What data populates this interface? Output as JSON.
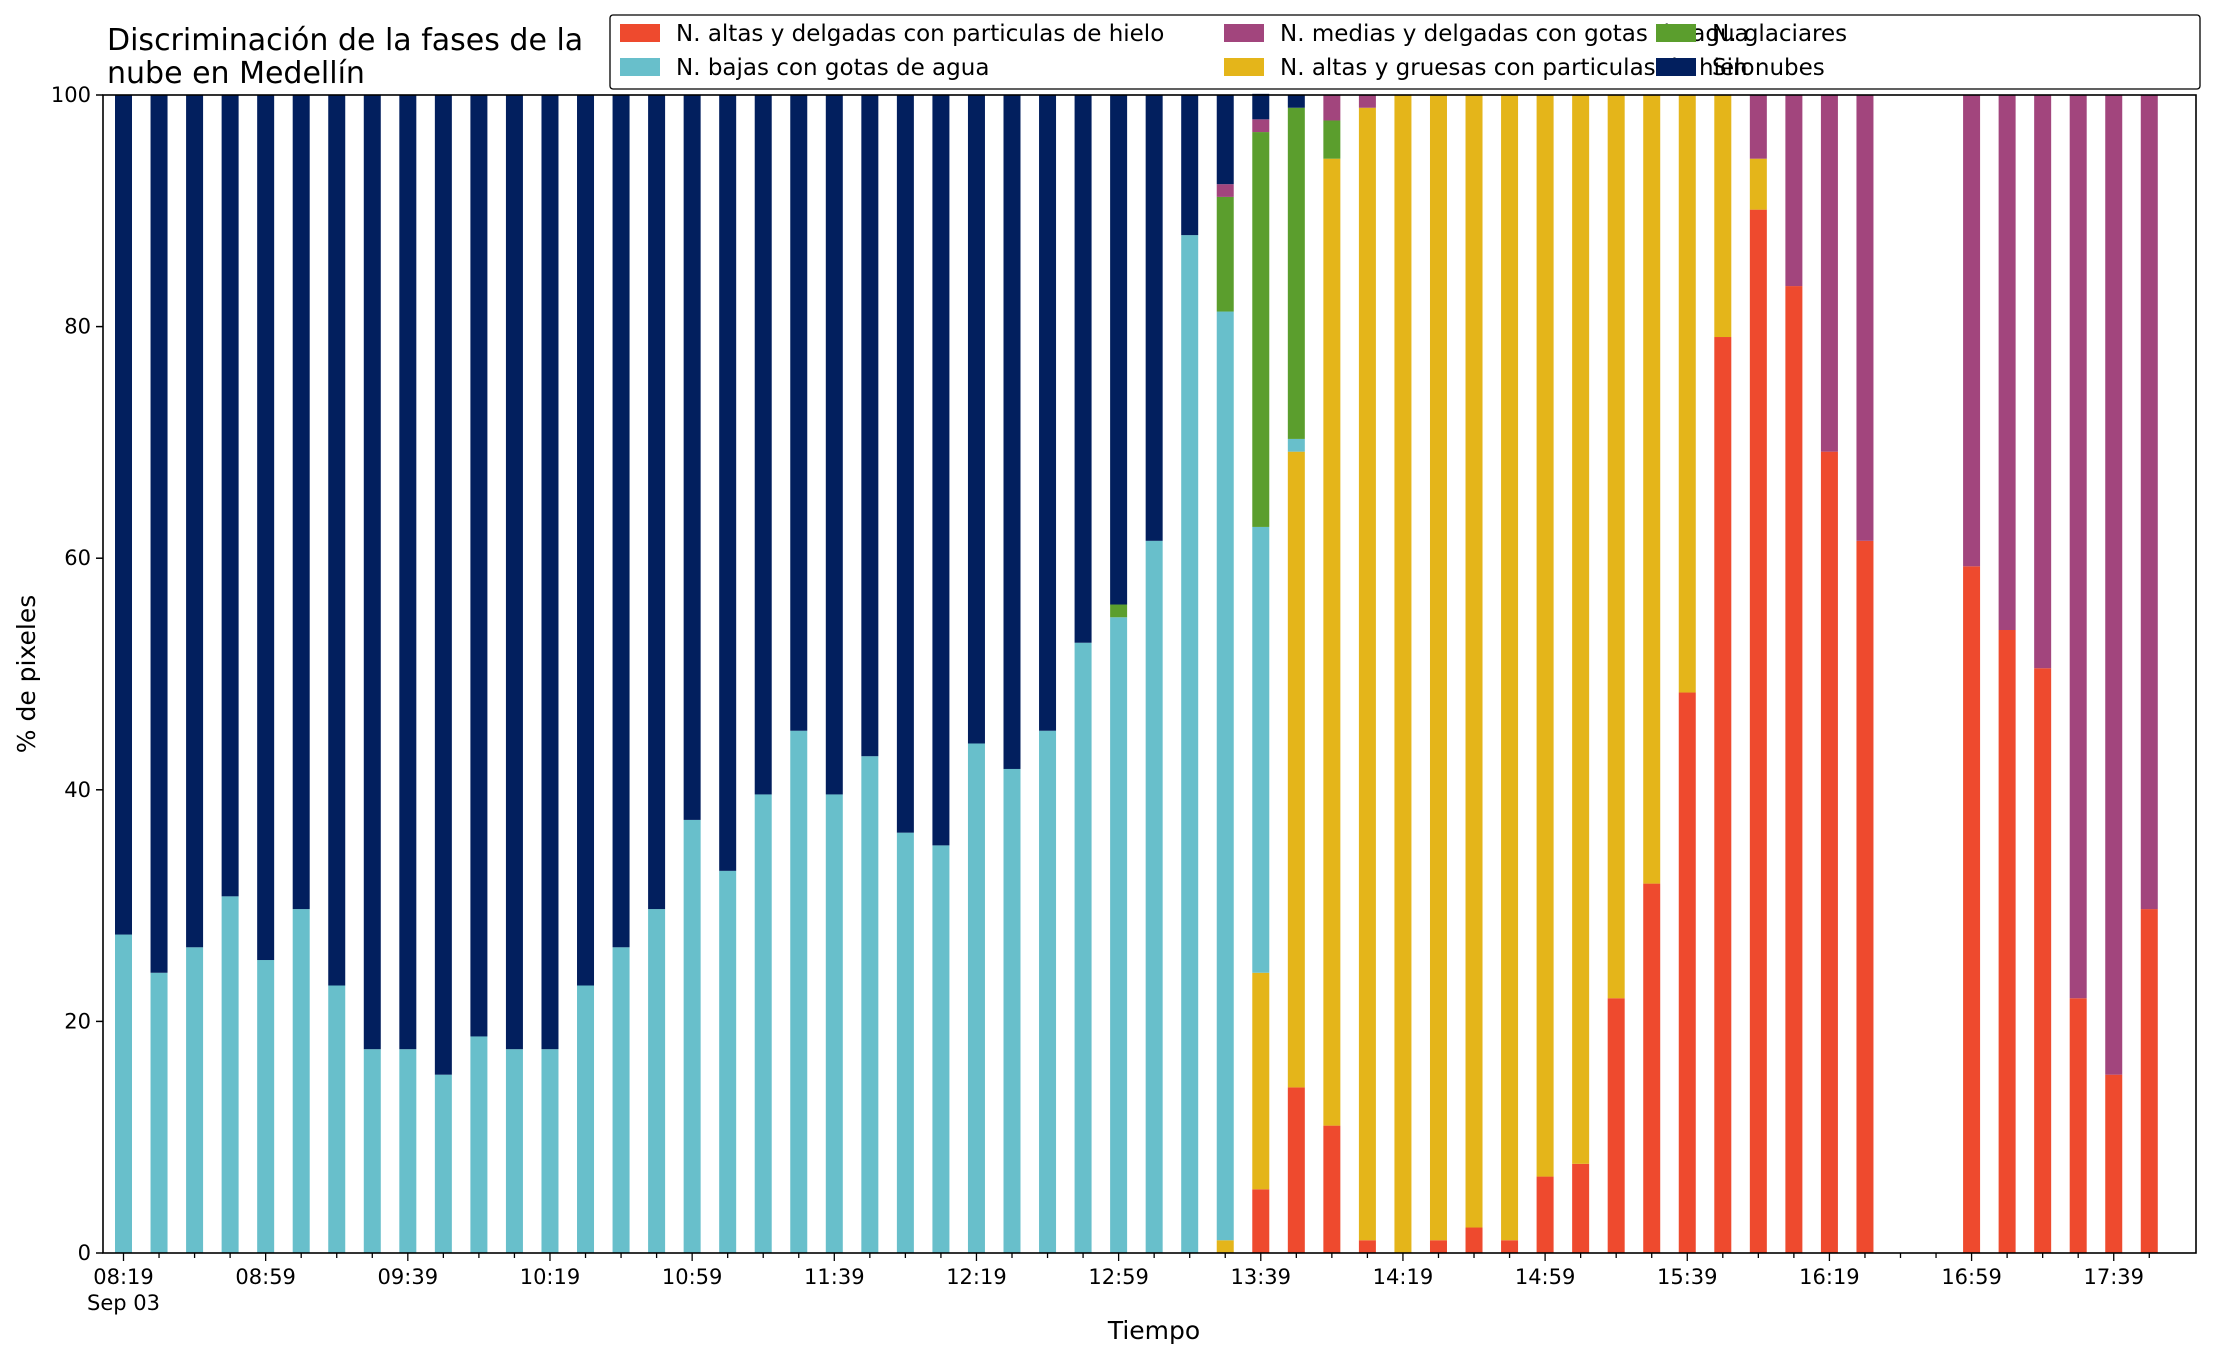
{
  "chart_data": {
    "type": "bar",
    "stacked": true,
    "title_lines": [
      "Discriminación de la fases de la",
      "nube en Medellín"
    ],
    "xlabel": "Tiempo",
    "ylabel": "% de pixeles",
    "ylim": [
      0,
      100
    ],
    "yticks": [
      "0",
      "20",
      "40",
      "60",
      "80",
      "100"
    ],
    "x_start_label": "08:19",
    "x_date_label": "Sep 03",
    "x_tick_labels": [
      "08:59",
      "09:39",
      "10:19",
      "10:59",
      "11:39",
      "12:19",
      "12:59",
      "13:39",
      "14:19",
      "14:59",
      "15:39",
      "16:19",
      "16:59",
      "17:39"
    ],
    "x_interval_minutes": 10,
    "legend_placement": "top-right",
    "grid": false,
    "categories": [
      "08:19",
      "08:29",
      "08:39",
      "08:49",
      "08:59",
      "09:09",
      "09:19",
      "09:29",
      "09:39",
      "09:49",
      "09:59",
      "10:09",
      "10:19",
      "10:29",
      "10:39",
      "10:49",
      "10:59",
      "11:09",
      "11:19",
      "11:29",
      "11:39",
      "11:49",
      "11:59",
      "12:09",
      "12:19",
      "12:29",
      "12:39",
      "12:49",
      "12:59",
      "13:09",
      "13:19",
      "13:29",
      "13:39",
      "13:49",
      "13:59",
      "14:09",
      "14:19",
      "14:29",
      "14:39",
      "14:49",
      "14:59",
      "15:09",
      "15:19",
      "15:29",
      "15:39",
      "15:49",
      "15:59",
      "16:09",
      "16:19",
      "16:29",
      "16:39",
      "16:49",
      "16:59",
      "17:09",
      "17:19",
      "17:29",
      "17:39",
      "17:49"
    ],
    "series": [
      {
        "name": "N. altas y delgadas con particulas de hielo",
        "color": "#EE4A2E",
        "values": [
          0,
          0,
          0,
          0,
          0,
          0,
          0,
          0,
          0,
          0,
          0,
          0,
          0,
          0,
          0,
          0,
          0,
          0,
          0,
          0,
          0,
          0,
          0,
          0,
          0,
          0,
          0,
          0,
          0,
          0,
          0,
          0,
          5.5,
          14.3,
          11,
          1.1,
          0,
          1.1,
          2.2,
          1.1,
          6.6,
          7.7,
          22,
          31.9,
          48.4,
          79.1,
          90.1,
          83.5,
          69.2,
          61.5,
          0,
          0,
          59.3,
          53.8,
          50.5,
          22,
          15.4,
          29.7
        ]
      },
      {
        "name": "N. altas y gruesas con particulas de hielo",
        "color": "#E4B51A",
        "values": [
          0,
          0,
          0,
          0,
          0,
          0,
          0,
          0,
          0,
          0,
          0,
          0,
          0,
          0,
          0,
          0,
          0,
          0,
          0,
          0,
          0,
          0,
          0,
          0,
          0,
          0,
          0,
          0,
          0,
          0,
          0,
          1.1,
          18.7,
          54.9,
          83.5,
          97.8,
          100,
          98.9,
          97.8,
          98.9,
          93.4,
          92.3,
          78,
          68.1,
          51.6,
          20.9,
          4.4,
          0,
          0,
          0,
          0,
          0,
          0,
          0,
          0,
          0,
          0,
          0
        ]
      },
      {
        "name": "N. bajas con gotas de agua",
        "color": "#68BFCB",
        "values": [
          27.5,
          24.2,
          26.4,
          30.8,
          25.3,
          29.7,
          23.1,
          17.6,
          17.6,
          15.4,
          18.7,
          17.6,
          17.6,
          23.1,
          26.4,
          29.7,
          37.4,
          33,
          39.6,
          45.1,
          39.6,
          42.9,
          36.3,
          35.2,
          44,
          41.8,
          45.1,
          52.7,
          54.9,
          61.5,
          87.9,
          80.2,
          38.5,
          1.1,
          0,
          0,
          0,
          0,
          0,
          0,
          0,
          0,
          0,
          0,
          0,
          0,
          0,
          0,
          0,
          0,
          0,
          0,
          0,
          0,
          0,
          0,
          0,
          0
        ]
      },
      {
        "name": "N. glaciares",
        "color": "#5B9E2D",
        "values": [
          0,
          0,
          0,
          0,
          0,
          0,
          0,
          0,
          0,
          0,
          0,
          0,
          0,
          0,
          0,
          0,
          0,
          0,
          0,
          0,
          0,
          0,
          0,
          0,
          0,
          0,
          0,
          0,
          1.1,
          0,
          0,
          9.9,
          34.1,
          28.6,
          3.3,
          0,
          0,
          0,
          0,
          0,
          0,
          0,
          0,
          0,
          0,
          0,
          0,
          0,
          0,
          0,
          0,
          0,
          0,
          0,
          0,
          0,
          0,
          0
        ]
      },
      {
        "name": "N. medias y delgadas con gotas de agua",
        "color": "#A2457D",
        "values": [
          0,
          0,
          0,
          0,
          0,
          0,
          0,
          0,
          0,
          0,
          0,
          0,
          0,
          0,
          0,
          0,
          0,
          0,
          0,
          0,
          0,
          0,
          0,
          0,
          0,
          0,
          0,
          0,
          0,
          0,
          0,
          1.1,
          1.1,
          0,
          2.2,
          1.1,
          0,
          0,
          0,
          0,
          0,
          0,
          0,
          0,
          0,
          0,
          5.5,
          16.5,
          30.8,
          38.5,
          0,
          0,
          40.7,
          46.2,
          49.5,
          78,
          84.6,
          70.3
        ]
      },
      {
        "name": "Sin nubes",
        "color": "#021F5E",
        "values": [
          72.5,
          75.8,
          73.6,
          69.2,
          74.7,
          70.3,
          76.9,
          82.4,
          82.4,
          84.6,
          81.3,
          82.4,
          82.4,
          76.9,
          73.6,
          70.3,
          62.6,
          67,
          60.4,
          54.9,
          60.4,
          57.1,
          63.7,
          64.8,
          56,
          58.2,
          54.9,
          47.3,
          44,
          38.5,
          12.1,
          7.7,
          2.2,
          1.1,
          0,
          0,
          0,
          0,
          0,
          0,
          0,
          0,
          0,
          0,
          0,
          0,
          0,
          0,
          0,
          0,
          0,
          0,
          0,
          0,
          0,
          0,
          0,
          0
        ]
      }
    ],
    "legend_order": [
      0,
      2,
      4,
      1,
      3,
      5
    ]
  }
}
